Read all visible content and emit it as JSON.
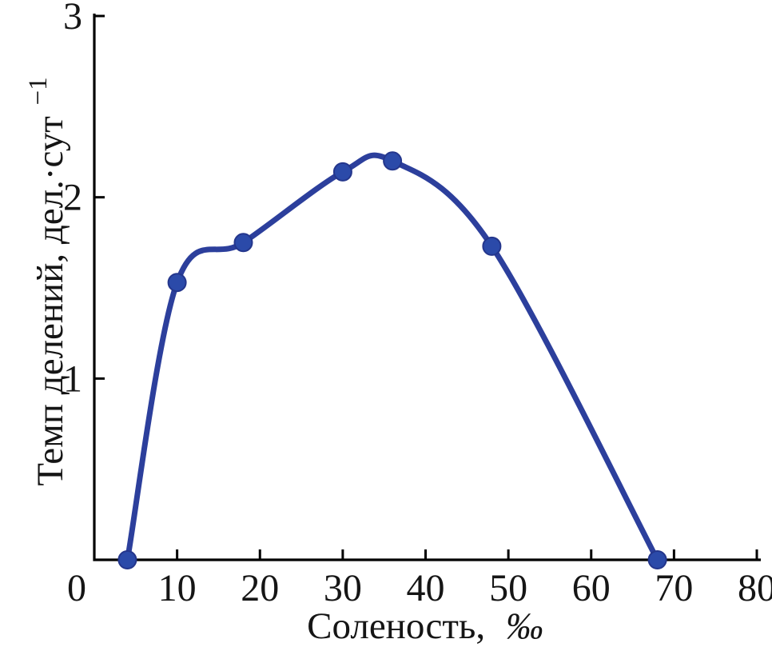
{
  "figure": {
    "background": "#ffffff"
  },
  "chart_data": {
    "type": "line",
    "title": "",
    "xlabel": "Соленость,",
    "xlabel_unit": "‰",
    "ylabel_main": "Темп делений, дел.·сут",
    "ylabel_sup": "−1",
    "x": [
      4,
      10,
      18,
      30,
      36,
      48,
      68
    ],
    "y": [
      0,
      1.53,
      1.75,
      2.14,
      2.2,
      1.73,
      0
    ],
    "xlim": [
      0,
      80
    ],
    "ylim": [
      0,
      3
    ],
    "xticks": [
      0,
      10,
      20,
      30,
      40,
      50,
      60,
      70,
      80
    ],
    "yticks": [
      1,
      2,
      3
    ],
    "grid": false,
    "legend": null,
    "curve": "smooth",
    "marker": "circle",
    "colors": {
      "line": "#2c3f9c",
      "marker_fill": "#2b4aa9",
      "marker_edge": "#24368c",
      "axis": "#000000",
      "text": "#151515"
    }
  }
}
